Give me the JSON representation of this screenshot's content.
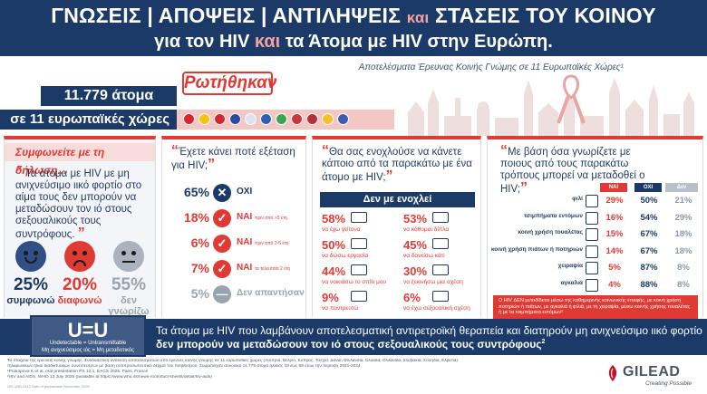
{
  "header": {
    "line1_a": "ΓΝΩΣΕΙΣ | ΑΠΟΨΕΙΣ | ΑΝΤΙΛΗΨΕΙΣ",
    "line1_kai": "και",
    "line1_b": "ΣΤΑΣΕΙΣ ΤΟΥ ΚΟΙΝΟΥ",
    "line2_a": "για τον HIV",
    "line2_kai": "και",
    "line2_b": "τα Άτομα με HIV στην Ευρώπη."
  },
  "subtitle": "Αποτελέσματα Έρευνας Κοινής Γνώμης σε 11 Ευρωπαϊκές Χώρες¹",
  "survey": {
    "asked": "Ρωτήθηκαν",
    "people": "11.779 άτομα",
    "countries": "σε 11 ευρωπαϊκές χώρες"
  },
  "flags": [
    {
      "name": "austria",
      "color": "#d9262e"
    },
    {
      "name": "belgium",
      "color": "#f3c319"
    },
    {
      "name": "switzerland",
      "color": "#d9262e"
    },
    {
      "name": "france",
      "color": "#2a4aa0"
    },
    {
      "name": "czechia",
      "color": "#dfe4ee"
    },
    {
      "name": "greece",
      "color": "#2a62b8"
    },
    {
      "name": "italy",
      "color": "#3aa55a"
    },
    {
      "name": "netherlands",
      "color": "#c8383c"
    },
    {
      "name": "norway",
      "color": "#b82e3a"
    },
    {
      "name": "sweden",
      "color": "#f2c22a"
    },
    {
      "name": "slovakia",
      "color": "#3b5fae"
    }
  ],
  "panel1": {
    "head": "Συμφωνείτε με τη δήλωση...",
    "statement": "Τα άτομα με HIV με μη ανιχνεύσιμο ιικό φορτίο στο αίμα τους δεν μπορούν να μεταδώσουν τον ιό στους σεξουαλικούς τους συντρόφους.",
    "answers": [
      {
        "value": "25%",
        "label": "συμφωνώ",
        "color": "#1b3a67",
        "face": "#2f4f86"
      },
      {
        "value": "20%",
        "label": "διαφωνώ",
        "color": "#e03a35",
        "face": "#e03a35"
      },
      {
        "value": "55%",
        "label": "δεν γνωρίζω",
        "color": "#9aa4b1",
        "face": "#aab2bd"
      }
    ]
  },
  "panel2": {
    "question": "Έχετε κάνει ποτέ εξέταση για HIV;",
    "rows": [
      {
        "value": "65%",
        "label": "ΟΧΙ",
        "sub": "",
        "icon": "✕",
        "color": "#1b3a67"
      },
      {
        "value": "18%",
        "label": "ΝΑΙ",
        "sub": "πριν από >5 έτη",
        "icon": "✓",
        "color": "#e03a35"
      },
      {
        "value": "6%",
        "label": "ΝΑΙ",
        "sub": "πριν από 2-5 έτη",
        "icon": "✓",
        "color": "#e03a35"
      },
      {
        "value": "7%",
        "label": "ΝΑΙ",
        "sub": "τα τελευταία 2 έτη",
        "icon": "✓",
        "color": "#e03a35"
      },
      {
        "value": "5%",
        "label": "Δεν απαντήσαν",
        "sub": "",
        "icon": "—",
        "color": "#9aa4b1"
      }
    ]
  },
  "panel3": {
    "question": "Θα σας ενοχλούσε να κάνετε κάποιο από τα παρακάτω με ένα άτομο με HIV;",
    "bar": "Δεν με ενοχλεί",
    "items": [
      {
        "value": "58%",
        "label": "να έχω γείτονα"
      },
      {
        "value": "53%",
        "label": "να κάθομαι δίπλα"
      },
      {
        "value": "50%",
        "label": "να δώσω εργασία"
      },
      {
        "value": "45%",
        "label": "να δανείσω κάτι"
      },
      {
        "value": "44%",
        "label": "να νοικιάσω το σπίτι μου"
      },
      {
        "value": "30%",
        "label": "να ξεκινήσω μια σχέση"
      },
      {
        "value": "9%",
        "label": "να παντρευτώ"
      },
      {
        "value": "6%",
        "label": "να έχω σεξουαλική σχέση"
      }
    ]
  },
  "panel4": {
    "question": "Με βάση όσα γνωρίζετε με ποιους από τους παρακάτω τρόπους μπορεί να μεταδοθεί ο HIV;",
    "columns": [
      "ΝΑΙ",
      "ΟΧΙ",
      "Δεν γνωρίζω"
    ],
    "rows": [
      {
        "label": "φιλί",
        "yes": "29%",
        "no": "50%",
        "dk": "21%"
      },
      {
        "label": "τσιμπήματα εντόμων",
        "yes": "16%",
        "no": "54%",
        "dk": "29%"
      },
      {
        "label": "κοινή χρήση τουαλέτας",
        "yes": "15%",
        "no": "67%",
        "dk": "18%"
      },
      {
        "label": "κοινή χρήση πιάτων ή ποτηριών",
        "yes": "14%",
        "no": "67%",
        "dk": "18%"
      },
      {
        "label": "χειραψία",
        "yes": "5%",
        "no": "87%",
        "dk": "8%"
      },
      {
        "label": "αγκαλιά",
        "yes": "4%",
        "no": "88%",
        "dk": "8%"
      }
    ],
    "note": "Ο HIV ΔΕΝ μεταδίδεται μέσω της καθημερινής κοινωνικής επαφής, με κοινή χρήση ποτηριών ή πιάτων, με αγκαλιά ή φιλιά, με τη χειραψία, μέσω κοινής χρήσης τουαλέτας ή με τα τσιμπήματα εντόμων²"
  },
  "uu": {
    "big": "U=U",
    "small1": "Undetectable = Untransmittable",
    "small2": "Μη ανιχνεύσιμος ιός = Μη μεταδοτικός",
    "text1": "Τα άτομα με HIV που λαμβάνουν αποτελεσματική αντιρετροϊκή θεραπεία και διατηρούν μη ανιχνεύσιμο ιικό φορτίο",
    "text2": "δεν μπορούν να μεταδώσουν τον ιό στους σεξουαλικούς τους συντρόφους",
    "text2_sup": "2"
  },
  "footnotes": [
    "Τα στοιχεία της έρευνας κοινής γνώμης. Συνδυαστική ανάλυση αποτελεσμάτων από έρευνες κοινής γνώμης σε 11 ευρωπαϊκές χώρες (Αυστρία, Βέλγιο, Κύπρος, Τσεχία, Δανία, Φινλανδία, Ελλάδα, Ολλανδία, Σλοβακία, Σουηδία, Ελβετία).",
    "τηλεφωνικών ή/και διαδικτυακών συνεντεύξεων με βάση αντιπροσωπευτικό δείγμα του πληθυσμού. Συμμετείχαν συνολικά 11.779 άτομα ηλικίας 18 έως 65 ετών την περίοδο 2021-2024.",
    "¹Prokopova K et al, oral presentation PS 12.1, EACS 2025, Paris, France",
    "²HIV and AIDS, WHO 13 July 2025 (available at https://www.who.int/news-room/fact-sheets/detail/hiv-aids)"
  ],
  "logo": {
    "name": "GILEAD",
    "tag": "Creating Possible"
  },
  "code": "GR-UNB-0112 Date of preparation November 2025"
}
